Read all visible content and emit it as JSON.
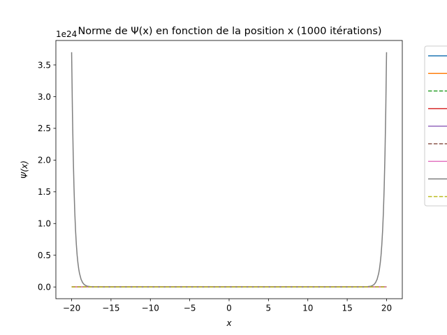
{
  "chart_data": {
    "type": "line",
    "title": "Norme de Ψ(x) en fonction de la position x (1000 itérations)",
    "xlabel": "x",
    "ylabel": "Ψ(x)",
    "y_offset_label": "1e24",
    "xlim": [
      -22,
      22
    ],
    "ylim": [
      -0.185,
      3.885
    ],
    "xticks": [
      -20,
      -15,
      -10,
      -5,
      0,
      5,
      10,
      15,
      20
    ],
    "xtick_labels": [
      "−20",
      "−15",
      "−10",
      "−5",
      "0",
      "5",
      "10",
      "15",
      "20"
    ],
    "yticks": [
      0.0,
      0.5,
      1.0,
      1.5,
      2.0,
      2.5,
      3.0,
      3.5
    ],
    "ytick_labels": [
      "0.0",
      "0.5",
      "1.0",
      "1.5",
      "2.0",
      "2.5",
      "3.0",
      "3.5"
    ],
    "grid": false,
    "legend_position": "outside-right",
    "series": [
      {
        "color": "#1f77b4",
        "dash": "solid",
        "x": [
          -20,
          20
        ],
        "y": [
          0,
          0
        ]
      },
      {
        "color": "#ff7f0e",
        "dash": "solid",
        "x": [
          -20,
          20
        ],
        "y": [
          0,
          0
        ]
      },
      {
        "color": "#2ca02c",
        "dash": "dashed",
        "x": [
          -20,
          20
        ],
        "y": [
          0,
          0
        ]
      },
      {
        "color": "#d62728",
        "dash": "solid",
        "x": [
          -20,
          20
        ],
        "y": [
          0,
          0
        ]
      },
      {
        "color": "#9467bd",
        "dash": "solid",
        "x": [
          -20,
          20
        ],
        "y": [
          0,
          0
        ]
      },
      {
        "color": "#8c564b",
        "dash": "dashed",
        "x": [
          -20,
          20
        ],
        "y": [
          0,
          0
        ]
      },
      {
        "color": "#e377c2",
        "dash": "solid",
        "x": [
          -20,
          20
        ],
        "y": [
          0,
          0
        ]
      },
      {
        "color": "#7f7f7f",
        "dash": "solid",
        "x": [
          -20.0,
          -19.9,
          -19.8,
          -19.7,
          -19.6,
          -19.5,
          -19.4,
          -19.3,
          -19.2,
          -19.1,
          -19.0,
          -18.8,
          -18.6,
          -18.4,
          -18.2,
          -18.0,
          -17.5,
          -17.0,
          17.0,
          17.5,
          18.0,
          18.2,
          18.4,
          18.6,
          18.8,
          19.0,
          19.1,
          19.2,
          19.3,
          19.4,
          19.5,
          19.6,
          19.7,
          19.8,
          19.9,
          20.0
        ],
        "y": [
          3.7,
          2.78,
          2.09,
          1.57,
          1.18,
          0.89,
          0.67,
          0.5,
          0.38,
          0.285,
          0.214,
          0.121,
          0.068,
          0.038,
          0.022,
          0.012,
          0.003,
          0.0,
          0.0,
          0.003,
          0.012,
          0.022,
          0.038,
          0.068,
          0.121,
          0.214,
          0.285,
          0.38,
          0.5,
          0.67,
          0.89,
          1.18,
          1.57,
          2.09,
          2.78,
          3.7
        ]
      },
      {
        "color": "#bcbd22",
        "dash": "dashed",
        "x": [
          -20,
          20
        ],
        "y": [
          0,
          0
        ]
      }
    ]
  }
}
